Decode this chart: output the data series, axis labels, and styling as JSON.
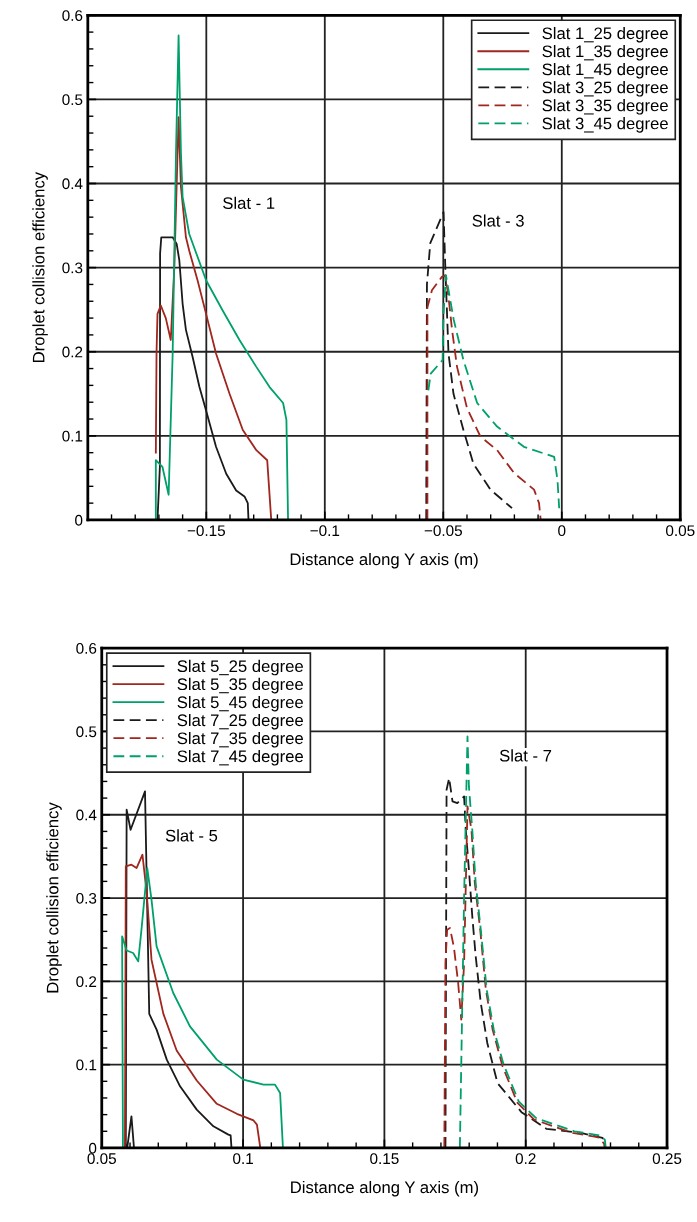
{
  "chart_data": [
    {
      "type": "line",
      "xlabel": "Distance along Y axis (m)",
      "ylabel": "Droplet collision efficiency",
      "xlim": [
        -0.2,
        0.05
      ],
      "xticks": [
        {
          "value": -0.2,
          "label": null
        },
        {
          "value": -0.15,
          "label": "−0.15"
        },
        {
          "value": -0.1,
          "label": "−0.1"
        },
        {
          "value": -0.05,
          "label": "−0.05"
        },
        0,
        0.05
      ],
      "ylim": [
        0,
        0.6
      ],
      "yticks": [
        0,
        0.1,
        0.2,
        0.3,
        0.4,
        0.5,
        0.6
      ],
      "grid": true,
      "legend": "top right",
      "annotations": [
        "Slat - 1",
        "Slat - 3"
      ],
      "series": [
        {
          "name": "Slat 1_25 degree",
          "color": "#1a1a1a",
          "line_style": "solid",
          "x": [
            -0.1706,
            -0.1696,
            -0.1695,
            -0.169,
            -0.1642,
            -0.1625,
            -0.1614,
            -0.16,
            -0.1586,
            -0.1558,
            -0.1529,
            -0.1501,
            -0.1459,
            -0.1416,
            -0.1374,
            -0.1339,
            -0.1325,
            -0.1322
          ],
          "values": [
            0,
            0.063,
            0.317,
            0.336,
            0.336,
            0.328,
            0.309,
            0.257,
            0.226,
            0.194,
            0.158,
            0.13,
            0.087,
            0.055,
            0.035,
            0.028,
            0.02,
            0
          ]
        },
        {
          "name": "Slat 1_35 degree",
          "color": "#a0261e",
          "line_style": "solid",
          "x": [
            -0.1713,
            -0.171,
            -0.1706,
            -0.1692,
            -0.1671,
            -0.165,
            -0.1635,
            -0.1617,
            -0.1607,
            -0.1586,
            -0.1572,
            -0.1537,
            -0.1501,
            -0.1459,
            -0.1402,
            -0.1346,
            -0.1289,
            -0.1243,
            -0.1226
          ],
          "values": [
            0.08,
            0.2,
            0.245,
            0.255,
            0.24,
            0.214,
            0.3,
            0.479,
            0.396,
            0.336,
            0.32,
            0.285,
            0.245,
            0.198,
            0.15,
            0.107,
            0.083,
            0.071,
            0
          ]
        },
        {
          "name": "Slat 1_45 degree",
          "color": "#00a06a",
          "line_style": "solid",
          "x": [
            -0.1713,
            -0.1713,
            -0.1685,
            -0.1659,
            -0.1642,
            -0.1628,
            -0.1617,
            -0.1607,
            -0.16,
            -0.1572,
            -0.1501,
            -0.1431,
            -0.136,
            -0.1289,
            -0.1233,
            -0.1176,
            -0.1162,
            -0.1155
          ],
          "values": [
            0,
            0.071,
            0.063,
            0.03,
            0.198,
            0.436,
            0.576,
            0.436,
            0.384,
            0.34,
            0.285,
            0.249,
            0.214,
            0.182,
            0.158,
            0.139,
            0.119,
            0
          ]
        },
        {
          "name": "Slat 3_25 degree",
          "color": "#1a1a1a",
          "line_style": "dashed",
          "x": [
            -0.0572,
            -0.0569,
            -0.0555,
            -0.0499,
            -0.0492,
            -0.0478,
            -0.0457,
            -0.0415,
            -0.0373,
            -0.0301,
            -0.021
          ],
          "values": [
            0,
            0.28,
            0.329,
            0.366,
            0.305,
            0.198,
            0.15,
            0.107,
            0.067,
            0.036,
            0.014
          ]
        },
        {
          "name": "Slat 3_35 degree",
          "color": "#a0261e",
          "line_style": "dashed",
          "x": [
            -0.0567,
            -0.0567,
            -0.0548,
            -0.0506,
            -0.0492,
            -0.0478,
            -0.0463,
            -0.0442,
            -0.04,
            -0.0343,
            -0.0273,
            -0.0202,
            -0.0117,
            -0.0096,
            -0.0089
          ],
          "values": [
            0,
            0.253,
            0.273,
            0.289,
            0.291,
            0.265,
            0.226,
            0.182,
            0.133,
            0.099,
            0.083,
            0.056,
            0.036,
            0.02,
            0
          ]
        },
        {
          "name": "Slat 3_45 degree",
          "color": "#00a06a",
          "line_style": "dashed",
          "x": [
            -0.0563,
            -0.0553,
            -0.0503,
            -0.0499,
            -0.0489,
            -0.0456,
            -0.0415,
            -0.0357,
            -0.0273,
            -0.016,
            -0.0075,
            -0.0032,
            -0.0018,
            -0.0011
          ],
          "values": [
            0.154,
            0.174,
            0.19,
            0.245,
            0.291,
            0.238,
            0.19,
            0.139,
            0.111,
            0.087,
            0.079,
            0.075,
            0.047,
            0.014
          ]
        }
      ]
    },
    {
      "type": "line",
      "xlabel": "Distance along Y axis (m)",
      "ylabel": "Droplet collision efficiency",
      "xlim": [
        0.05,
        0.25
      ],
      "xticks": [
        0.05,
        0.1,
        0.15,
        0.2,
        0.25
      ],
      "ylim": [
        0,
        0.6
      ],
      "yticks": [
        0,
        0.1,
        0.2,
        0.3,
        0.4,
        0.5,
        0.6
      ],
      "grid": true,
      "legend": "top left",
      "annotations": [
        "Slat - 5",
        "Slat - 7"
      ],
      "series": [
        {
          "name": "Slat 5_25 degree",
          "color": "#1a1a1a",
          "line_style": "solid",
          "x": [
            0.0585,
            0.0588,
            0.0602,
            0.0653,
            0.0668,
            0.0694,
            0.073,
            0.0777,
            0.0836,
            0.0895,
            0.0948,
            0.0956,
            0.0959,
            null,
            0.059,
            0.0605,
            0.0614
          ],
          "values": [
            0,
            0.406,
            0.382,
            0.428,
            0.161,
            0.142,
            0.106,
            0.074,
            0.046,
            0.026,
            0.016,
            0.015,
            0,
            null,
            0,
            0.038,
            0
          ]
        },
        {
          "name": "Slat 5_35 degree",
          "color": "#a0261e",
          "line_style": "solid",
          "x": [
            0.0582,
            0.0585,
            0.0605,
            0.0623,
            0.0644,
            0.0659,
            0.0676,
            0.0718,
            0.0765,
            0.0836,
            0.0907,
            0.0978,
            0.1037,
            0.1049,
            0.1061
          ],
          "values": [
            0,
            0.338,
            0.34,
            0.336,
            0.352,
            0.306,
            0.226,
            0.161,
            0.117,
            0.081,
            0.053,
            0.041,
            0.033,
            0.028,
            0
          ]
        },
        {
          "name": "Slat 5_45 degree",
          "color": "#00a06a",
          "line_style": "solid",
          "x": [
            0.0575,
            0.0572,
            0.0588,
            0.0611,
            0.0629,
            0.0641,
            0.0661,
            0.0676,
            0.0694,
            0.0753,
            0.0812,
            0.0907,
            0.1001,
            0.1072,
            0.1113,
            0.1131,
            0.1141
          ],
          "values": [
            0,
            0.254,
            0.237,
            0.234,
            0.224,
            0.264,
            0.336,
            0.298,
            0.242,
            0.186,
            0.146,
            0.106,
            0.082,
            0.076,
            0.076,
            0.066,
            0
          ]
        },
        {
          "name": "Slat 7_25 degree",
          "color": "#1a1a1a",
          "line_style": "dashed",
          "x": [
            0.1716,
            0.172,
            0.1729,
            0.1741,
            0.1758,
            0.1782,
            0.1788,
            0.1799,
            0.1811,
            0.1823,
            0.1841,
            0.1864,
            0.19,
            0.1985,
            0.2073,
            0.2195,
            0.2272,
            0.228
          ],
          "values": [
            0,
            0.43,
            0.444,
            0.416,
            0.414,
            0.422,
            0.382,
            0.334,
            0.278,
            0.23,
            0.174,
            0.126,
            0.078,
            0.043,
            0.023,
            0.018,
            0.012,
            0.002
          ]
        },
        {
          "name": "Slat 7_35 degree",
          "color": "#a0261e",
          "line_style": "dashed",
          "x": [
            0.1712,
            0.1716,
            0.1722,
            0.1732,
            0.1746,
            0.1761,
            0.1772,
            0.1782,
            0.1794,
            0.1808,
            0.182,
            0.1839,
            0.1859,
            0.1883,
            0.1918,
            0.1971,
            0.203,
            0.2166,
            0.2255,
            0.2278,
            0.228
          ],
          "values": [
            0,
            0.222,
            0.262,
            0.264,
            0.241,
            0.198,
            0.154,
            0.222,
            0.41,
            0.382,
            0.318,
            0.262,
            0.19,
            0.142,
            0.098,
            0.054,
            0.034,
            0.018,
            0.013,
            0.005,
            0
          ]
        },
        {
          "name": "Slat 7_45 degree",
          "color": "#00a06a",
          "line_style": "dashed",
          "x": [
            0.1767,
            0.1776,
            0.1782,
            0.1792,
            0.1794,
            0.1799,
            0.1811,
            0.1823,
            0.1841,
            0.1862,
            0.1887,
            0.1922,
            0.1975,
            0.2036,
            0.2172,
            0.2261,
            0.228,
            0.2283
          ],
          "values": [
            0,
            0.182,
            0.302,
            0.462,
            0.494,
            0.434,
            0.382,
            0.318,
            0.262,
            0.19,
            0.142,
            0.1,
            0.056,
            0.036,
            0.02,
            0.015,
            0.01,
            0
          ]
        }
      ]
    }
  ]
}
